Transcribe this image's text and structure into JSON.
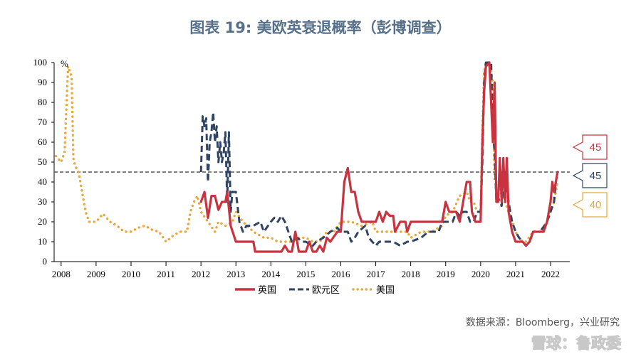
{
  "chart_data": {
    "type": "line",
    "title": "图表 19:   美欧英衰退概率（彭博调查）",
    "ylabel": "%",
    "ylim": [
      0,
      100
    ],
    "yticks": [
      0,
      10,
      20,
      30,
      40,
      50,
      60,
      70,
      80,
      90,
      100
    ],
    "xlim": [
      2007.8,
      2022.55
    ],
    "xticks": [
      {
        "label": "2008",
        "x": 2008.0
      },
      {
        "label": "2009",
        "x": 2009.0
      },
      {
        "label": "2010",
        "x": 2010.0
      },
      {
        "label": "2011",
        "x": 2011.0
      },
      {
        "label": "2012",
        "x": 2012.0
      },
      {
        "label": "2013",
        "x": 2013.0
      },
      {
        "label": "2014",
        "x": 2014.0
      },
      {
        "label": "2015",
        "x": 2015.0
      },
      {
        "label": "2016",
        "x": 2016.0
      },
      {
        "label": "2017",
        "x": 2017.0
      },
      {
        "label": "2018",
        "x": 2018.0
      },
      {
        "label": "2019",
        "x": 2019.0
      },
      {
        "label": "2020",
        "x": 2020.0
      },
      {
        "label": "2021",
        "x": 2021.0
      },
      {
        "label": "2022",
        "x": 2022.0
      }
    ],
    "reference_line": {
      "y": 45
    },
    "series": [
      {
        "name": "英国",
        "color": "#c8333f",
        "style": "solid",
        "end_label": "45",
        "points": [
          [
            2012.0,
            30
          ],
          [
            2012.1,
            35
          ],
          [
            2012.2,
            22
          ],
          [
            2012.3,
            33
          ],
          [
            2012.4,
            33
          ],
          [
            2012.5,
            26
          ],
          [
            2012.6,
            30
          ],
          [
            2012.7,
            30
          ],
          [
            2012.75,
            35
          ],
          [
            2012.85,
            18
          ],
          [
            2013.0,
            10
          ],
          [
            2013.3,
            10
          ],
          [
            2013.5,
            10
          ],
          [
            2013.55,
            5
          ],
          [
            2013.8,
            5
          ],
          [
            2014.0,
            5
          ],
          [
            2014.3,
            5
          ],
          [
            2014.4,
            8
          ],
          [
            2014.5,
            5
          ],
          [
            2014.6,
            5
          ],
          [
            2014.7,
            15
          ],
          [
            2014.8,
            5
          ],
          [
            2015.0,
            5
          ],
          [
            2015.1,
            10
          ],
          [
            2015.2,
            5
          ],
          [
            2015.3,
            5
          ],
          [
            2015.4,
            8
          ],
          [
            2015.5,
            5
          ],
          [
            2015.6,
            12
          ],
          [
            2015.7,
            10
          ],
          [
            2015.9,
            15
          ],
          [
            2016.0,
            15
          ],
          [
            2016.1,
            40
          ],
          [
            2016.2,
            47
          ],
          [
            2016.3,
            35
          ],
          [
            2016.4,
            35
          ],
          [
            2016.5,
            25
          ],
          [
            2016.6,
            20
          ],
          [
            2016.8,
            20
          ],
          [
            2017.0,
            20
          ],
          [
            2017.1,
            25
          ],
          [
            2017.2,
            20
          ],
          [
            2017.3,
            25
          ],
          [
            2017.4,
            23
          ],
          [
            2017.5,
            23
          ],
          [
            2017.55,
            15
          ],
          [
            2017.7,
            20
          ],
          [
            2017.85,
            20
          ],
          [
            2017.9,
            15
          ],
          [
            2018.0,
            20
          ],
          [
            2018.5,
            20
          ],
          [
            2018.9,
            20
          ],
          [
            2019.0,
            30
          ],
          [
            2019.1,
            25
          ],
          [
            2019.3,
            25
          ],
          [
            2019.4,
            20
          ],
          [
            2019.5,
            30
          ],
          [
            2019.6,
            40
          ],
          [
            2019.7,
            40
          ],
          [
            2019.75,
            25
          ],
          [
            2019.85,
            20
          ],
          [
            2019.95,
            20
          ],
          [
            2020.0,
            20
          ],
          [
            2020.05,
            60
          ],
          [
            2020.1,
            85
          ],
          [
            2020.15,
            98
          ],
          [
            2020.25,
            100
          ],
          [
            2020.35,
            60
          ],
          [
            2020.4,
            90
          ],
          [
            2020.45,
            30
          ],
          [
            2020.5,
            30
          ],
          [
            2020.55,
            52
          ],
          [
            2020.6,
            30
          ],
          [
            2020.65,
            52
          ],
          [
            2020.7,
            30
          ],
          [
            2020.75,
            52
          ],
          [
            2020.8,
            25
          ],
          [
            2020.9,
            15
          ],
          [
            2021.0,
            10
          ],
          [
            2021.2,
            10
          ],
          [
            2021.3,
            8
          ],
          [
            2021.4,
            10
          ],
          [
            2021.5,
            15
          ],
          [
            2021.6,
            15
          ],
          [
            2021.8,
            15
          ],
          [
            2021.9,
            20
          ],
          [
            2022.0,
            30
          ],
          [
            2022.05,
            40
          ],
          [
            2022.1,
            35
          ],
          [
            2022.15,
            40
          ],
          [
            2022.2,
            45
          ]
        ]
      },
      {
        "name": "欧元区",
        "color": "#2f4563",
        "style": "dashed",
        "end_label": "45",
        "points": [
          [
            2012.0,
            45
          ],
          [
            2012.05,
            73
          ],
          [
            2012.1,
            68
          ],
          [
            2012.15,
            72
          ],
          [
            2012.2,
            40
          ],
          [
            2012.25,
            60
          ],
          [
            2012.3,
            65
          ],
          [
            2012.35,
            75
          ],
          [
            2012.4,
            60
          ],
          [
            2012.45,
            68
          ],
          [
            2012.5,
            50
          ],
          [
            2012.55,
            60
          ],
          [
            2012.6,
            50
          ],
          [
            2012.65,
            55
          ],
          [
            2012.7,
            65
          ],
          [
            2012.75,
            30
          ],
          [
            2012.8,
            65
          ],
          [
            2012.85,
            25
          ],
          [
            2012.9,
            35
          ],
          [
            2013.0,
            35
          ],
          [
            2013.1,
            20
          ],
          [
            2013.2,
            15
          ],
          [
            2013.3,
            18
          ],
          [
            2013.5,
            18
          ],
          [
            2013.7,
            20
          ],
          [
            2013.8,
            15
          ],
          [
            2014.0,
            20
          ],
          [
            2014.1,
            22
          ],
          [
            2014.2,
            20
          ],
          [
            2014.3,
            23
          ],
          [
            2014.4,
            20
          ],
          [
            2014.5,
            15
          ],
          [
            2014.6,
            10
          ],
          [
            2014.75,
            12
          ],
          [
            2014.9,
            10
          ],
          [
            2015.0,
            10
          ],
          [
            2015.2,
            8
          ],
          [
            2015.3,
            10
          ],
          [
            2015.5,
            12
          ],
          [
            2015.7,
            15
          ],
          [
            2015.9,
            17
          ],
          [
            2016.0,
            15
          ],
          [
            2016.2,
            15
          ],
          [
            2016.3,
            10
          ],
          [
            2016.4,
            12
          ],
          [
            2016.5,
            15
          ],
          [
            2016.7,
            18
          ],
          [
            2016.8,
            12
          ],
          [
            2016.9,
            10
          ],
          [
            2017.0,
            8
          ],
          [
            2017.1,
            10
          ],
          [
            2017.3,
            10
          ],
          [
            2017.5,
            10
          ],
          [
            2017.7,
            8
          ],
          [
            2017.9,
            10
          ],
          [
            2018.0,
            10
          ],
          [
            2018.3,
            12
          ],
          [
            2018.5,
            15
          ],
          [
            2018.8,
            15
          ],
          [
            2018.9,
            20
          ],
          [
            2019.0,
            20
          ],
          [
            2019.2,
            20
          ],
          [
            2019.3,
            25
          ],
          [
            2019.4,
            23
          ],
          [
            2019.5,
            25
          ],
          [
            2019.6,
            25
          ],
          [
            2019.7,
            20
          ],
          [
            2019.8,
            20
          ],
          [
            2019.9,
            25
          ],
          [
            2020.0,
            25
          ],
          [
            2020.05,
            50
          ],
          [
            2020.1,
            90
          ],
          [
            2020.15,
            100
          ],
          [
            2020.3,
            100
          ],
          [
            2020.35,
            65
          ],
          [
            2020.4,
            55
          ],
          [
            2020.45,
            30
          ],
          [
            2020.5,
            32
          ],
          [
            2020.55,
            30
          ],
          [
            2020.6,
            28
          ],
          [
            2020.7,
            45
          ],
          [
            2020.8,
            30
          ],
          [
            2020.9,
            20
          ],
          [
            2021.0,
            15
          ],
          [
            2021.1,
            12
          ],
          [
            2021.2,
            10
          ],
          [
            2021.3,
            8
          ],
          [
            2021.4,
            10
          ],
          [
            2021.5,
            15
          ],
          [
            2021.7,
            15
          ],
          [
            2021.9,
            20
          ],
          [
            2022.0,
            25
          ],
          [
            2022.1,
            30
          ],
          [
            2022.15,
            40
          ],
          [
            2022.2,
            45
          ]
        ]
      },
      {
        "name": "美国",
        "color": "#e8a83a",
        "style": "dotted",
        "end_label": "40",
        "points": [
          [
            2007.85,
            53
          ],
          [
            2008.0,
            50
          ],
          [
            2008.1,
            55
          ],
          [
            2008.2,
            98
          ],
          [
            2008.3,
            93
          ],
          [
            2008.35,
            52
          ],
          [
            2008.4,
            48
          ],
          [
            2008.5,
            45
          ],
          [
            2008.6,
            35
          ],
          [
            2008.7,
            25
          ],
          [
            2008.8,
            20
          ],
          [
            2009.0,
            20
          ],
          [
            2009.2,
            24
          ],
          [
            2009.4,
            20
          ],
          [
            2009.6,
            18
          ],
          [
            2009.8,
            15
          ],
          [
            2010.0,
            15
          ],
          [
            2010.2,
            17
          ],
          [
            2010.4,
            18
          ],
          [
            2010.6,
            16
          ],
          [
            2010.8,
            15
          ],
          [
            2011.0,
            10
          ],
          [
            2011.2,
            13
          ],
          [
            2011.4,
            15
          ],
          [
            2011.6,
            15
          ],
          [
            2011.7,
            25
          ],
          [
            2011.8,
            30
          ],
          [
            2011.9,
            33
          ],
          [
            2012.0,
            25
          ],
          [
            2012.2,
            20
          ],
          [
            2012.4,
            15
          ],
          [
            2012.5,
            20
          ],
          [
            2012.7,
            18
          ],
          [
            2012.9,
            20
          ],
          [
            2013.0,
            25
          ],
          [
            2013.2,
            20
          ],
          [
            2013.5,
            15
          ],
          [
            2013.8,
            12
          ],
          [
            2014.0,
            12
          ],
          [
            2014.2,
            10
          ],
          [
            2014.4,
            10
          ],
          [
            2014.6,
            10
          ],
          [
            2014.8,
            12
          ],
          [
            2015.0,
            12
          ],
          [
            2015.2,
            10
          ],
          [
            2015.4,
            10
          ],
          [
            2015.6,
            15
          ],
          [
            2015.8,
            15
          ],
          [
            2016.0,
            20
          ],
          [
            2016.3,
            20
          ],
          [
            2016.6,
            18
          ],
          [
            2016.9,
            20
          ],
          [
            2017.0,
            15
          ],
          [
            2017.3,
            15
          ],
          [
            2017.6,
            15
          ],
          [
            2017.9,
            15
          ],
          [
            2018.0,
            12
          ],
          [
            2018.3,
            15
          ],
          [
            2018.6,
            15
          ],
          [
            2018.9,
            18
          ],
          [
            2019.0,
            23
          ],
          [
            2019.2,
            25
          ],
          [
            2019.4,
            33
          ],
          [
            2019.6,
            35
          ],
          [
            2019.7,
            30
          ],
          [
            2019.8,
            30
          ],
          [
            2019.9,
            25
          ],
          [
            2020.0,
            25
          ],
          [
            2020.05,
            65
          ],
          [
            2020.1,
            95
          ],
          [
            2020.15,
            100
          ],
          [
            2020.25,
            100
          ],
          [
            2020.35,
            90
          ],
          [
            2020.4,
            40
          ],
          [
            2020.5,
            40
          ],
          [
            2020.6,
            33
          ],
          [
            2020.7,
            30
          ],
          [
            2020.8,
            25
          ],
          [
            2020.9,
            20
          ],
          [
            2021.0,
            15
          ],
          [
            2021.1,
            12
          ],
          [
            2021.2,
            10
          ],
          [
            2021.3,
            10
          ],
          [
            2021.5,
            15
          ],
          [
            2021.7,
            15
          ],
          [
            2021.9,
            20
          ],
          [
            2022.0,
            25
          ],
          [
            2022.1,
            30
          ],
          [
            2022.15,
            35
          ],
          [
            2022.2,
            40
          ]
        ]
      }
    ],
    "legend": {
      "placement": "bottom"
    }
  },
  "source": "数据来源：Bloomberg，兴业研究",
  "watermark": "雪球：鲁政委"
}
